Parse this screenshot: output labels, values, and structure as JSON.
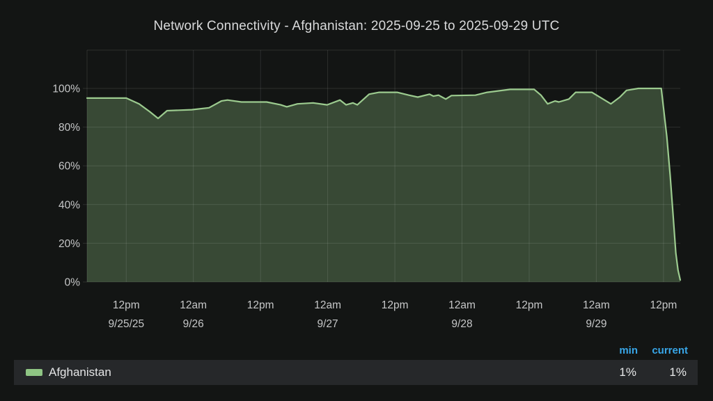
{
  "chart_data": {
    "type": "area",
    "title": "Network Connectivity - Afghanistan: 2025-09-25 to 2025-09-29 UTC",
    "ylabel": "",
    "xlabel": "",
    "x_unit": "hours since 2025-09-25 00:00 UTC (values estimated from gridlines)",
    "x_range": [
      5,
      111
    ],
    "ylim": [
      0,
      100
    ],
    "grid": true,
    "legend_position": "bottom",
    "line_color": "#9CCB8F",
    "fill_color": "rgba(143,197,132,0.30)",
    "y_ticks": [
      {
        "v": 0,
        "label": "0%"
      },
      {
        "v": 20,
        "label": "20%"
      },
      {
        "v": 40,
        "label": "40%"
      },
      {
        "v": 60,
        "label": "60%"
      },
      {
        "v": 80,
        "label": "80%"
      },
      {
        "v": 100,
        "label": "100%"
      }
    ],
    "x_ticks": [
      {
        "t": 12,
        "time": "12pm",
        "date": "9/25/25"
      },
      {
        "t": 24,
        "time": "12am",
        "date": "9/26"
      },
      {
        "t": 36,
        "time": "12pm",
        "date": ""
      },
      {
        "t": 48,
        "time": "12am",
        "date": "9/27"
      },
      {
        "t": 60,
        "time": "12pm",
        "date": ""
      },
      {
        "t": 72,
        "time": "12am",
        "date": "9/28"
      },
      {
        "t": 84,
        "time": "12pm",
        "date": ""
      },
      {
        "t": 96,
        "time": "12am",
        "date": "9/29"
      },
      {
        "t": 108,
        "time": "12pm",
        "date": ""
      }
    ],
    "series": [
      {
        "name": "Afghanistan",
        "points": [
          [
            5,
            95
          ],
          [
            12,
            95
          ],
          [
            14.3,
            92
          ],
          [
            16.2,
            88
          ],
          [
            17.7,
            84.5
          ],
          [
            19.3,
            88.5
          ],
          [
            23.7,
            89
          ],
          [
            26.8,
            90
          ],
          [
            29,
            93.5
          ],
          [
            30.1,
            94
          ],
          [
            32.6,
            93
          ],
          [
            37.1,
            93
          ],
          [
            39.6,
            91.5
          ],
          [
            40.7,
            90.5
          ],
          [
            42.6,
            92
          ],
          [
            45.4,
            92.5
          ],
          [
            47.9,
            91.5
          ],
          [
            50.2,
            94
          ],
          [
            51.3,
            91.5
          ],
          [
            52.5,
            92.5
          ],
          [
            53.3,
            91.5
          ],
          [
            55.4,
            97
          ],
          [
            57.2,
            98
          ],
          [
            60.4,
            98
          ],
          [
            62.5,
            96.5
          ],
          [
            64.1,
            95.5
          ],
          [
            66.2,
            97
          ],
          [
            66.9,
            96
          ],
          [
            67.8,
            96.5
          ],
          [
            69.1,
            94.5
          ],
          [
            70.1,
            96.3
          ],
          [
            74.4,
            96.5
          ],
          [
            76.5,
            98
          ],
          [
            80.6,
            99.5
          ],
          [
            84.9,
            99.5
          ],
          [
            86.1,
            96.5
          ],
          [
            87.3,
            92
          ],
          [
            88.6,
            93.5
          ],
          [
            89.3,
            93
          ],
          [
            91.1,
            94.5
          ],
          [
            92.3,
            98
          ],
          [
            95.2,
            98
          ],
          [
            98.6,
            92
          ],
          [
            100.2,
            95.5
          ],
          [
            101.4,
            99
          ],
          [
            103.5,
            100
          ],
          [
            107.6,
            100
          ],
          [
            108.6,
            75
          ],
          [
            109.2,
            55
          ],
          [
            109.7,
            35
          ],
          [
            110.2,
            15
          ],
          [
            110.6,
            6
          ],
          [
            111,
            1
          ]
        ]
      }
    ]
  },
  "legend": {
    "columns": [
      "min",
      "current"
    ],
    "series": [
      {
        "label": "Afghanistan",
        "swatch_color": "#8FC584",
        "min": "1%",
        "current": "1%"
      }
    ]
  },
  "colors": {
    "background": "#131514",
    "panel_row": "#26282A",
    "title_text": "#D9DADB",
    "axis_text": "#C6C7C8",
    "column_header_blue": "#38A6E8",
    "series_green": "#9CCB8F"
  }
}
